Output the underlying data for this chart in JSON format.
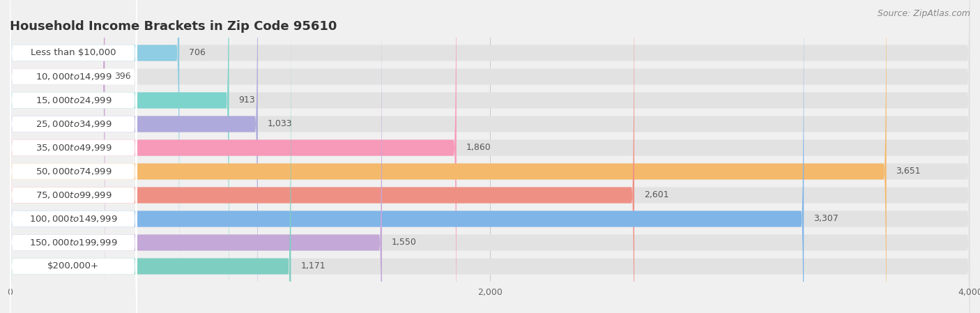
{
  "title": "Household Income Brackets in Zip Code 95610",
  "source": "Source: ZipAtlas.com",
  "categories": [
    "Less than $10,000",
    "$10,000 to $14,999",
    "$15,000 to $24,999",
    "$25,000 to $34,999",
    "$35,000 to $49,999",
    "$50,000 to $74,999",
    "$75,000 to $99,999",
    "$100,000 to $149,999",
    "$150,000 to $199,999",
    "$200,000+"
  ],
  "values": [
    706,
    396,
    913,
    1033,
    1860,
    3651,
    2601,
    3307,
    1550,
    1171
  ],
  "bar_colors": [
    "#8ECDE3",
    "#CFA8D2",
    "#7DD4CC",
    "#AEAADC",
    "#F799B8",
    "#F5B96C",
    "#EF9085",
    "#80B5E8",
    "#C4A8D8",
    "#7ECFC2"
  ],
  "page_bg": "#f0f0f0",
  "bar_bg_color": "#e2e2e2",
  "label_bg_color": "#ffffff",
  "xlim": [
    0,
    4000
  ],
  "xticks": [
    0,
    2000,
    4000
  ],
  "title_fontsize": 13,
  "label_fontsize": 9.5,
  "value_fontsize": 9,
  "source_fontsize": 9
}
